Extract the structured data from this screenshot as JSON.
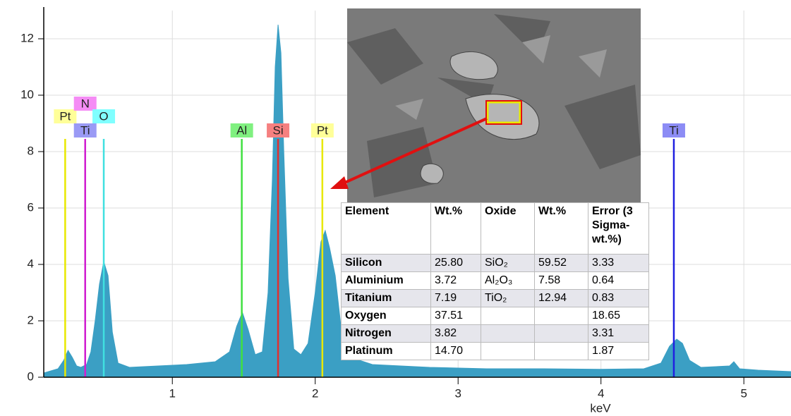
{
  "chart_data": {
    "type": "area",
    "xlabel": "keV",
    "color": "#3b9fc4",
    "x": [
      0.1,
      0.2,
      0.24,
      0.27,
      0.3,
      0.33,
      0.36,
      0.4,
      0.43,
      0.46,
      0.49,
      0.52,
      0.55,
      0.58,
      0.62,
      0.7,
      0.9,
      1.1,
      1.3,
      1.4,
      1.45,
      1.49,
      1.53,
      1.58,
      1.63,
      1.67,
      1.7,
      1.72,
      1.74,
      1.76,
      1.78,
      1.81,
      1.85,
      1.9,
      1.95,
      2.0,
      2.04,
      2.07,
      2.1,
      2.14,
      2.18,
      2.25,
      2.4,
      2.8,
      3.2,
      3.6,
      4.0,
      4.3,
      4.42,
      4.48,
      4.53,
      4.57,
      4.62,
      4.7,
      4.9,
      4.93,
      4.97,
      5.1,
      5.33
    ],
    "values": [
      0.15,
      0.3,
      0.6,
      0.95,
      0.7,
      0.4,
      0.35,
      0.45,
      0.9,
      2.0,
      3.3,
      4.1,
      3.6,
      1.6,
      0.5,
      0.35,
      0.4,
      0.45,
      0.55,
      0.9,
      1.8,
      2.3,
      1.7,
      0.8,
      0.9,
      3.0,
      7.0,
      11.0,
      12.5,
      11.5,
      8.0,
      3.5,
      1.0,
      0.8,
      1.2,
      3.0,
      4.8,
      5.2,
      4.6,
      3.6,
      1.8,
      0.7,
      0.45,
      0.35,
      0.3,
      0.3,
      0.28,
      0.3,
      0.5,
      1.1,
      1.35,
      1.2,
      0.6,
      0.35,
      0.4,
      0.55,
      0.3,
      0.25,
      0.2
    ],
    "xlim": [
      0.1,
      5.33
    ],
    "ylim": [
      0,
      13
    ],
    "xticks": [
      1,
      2,
      3,
      4,
      5
    ],
    "yticks": [
      0,
      2,
      4,
      6,
      8,
      10,
      12
    ],
    "grid": true,
    "markers": [
      {
        "label": "Pt",
        "x": 0.25,
        "color": "#e8e800",
        "label_color": "#ffff99"
      },
      {
        "label": "N",
        "x": 0.39,
        "color": "#e020e0",
        "label_color": "#f58cf5"
      },
      {
        "label": "Ti",
        "x": 0.39,
        "color": "#d020d0",
        "label_color": "#9a9af5"
      },
      {
        "label": "O",
        "x": 0.52,
        "color": "#40e0e0",
        "label_color": "#80ffff"
      },
      {
        "label": "Al",
        "x": 1.486,
        "color": "#40e040",
        "label_color": "#80f080"
      },
      {
        "label": "Si",
        "x": 1.74,
        "color": "#e03030",
        "label_color": "#f58080"
      },
      {
        "label": "Pt",
        "x": 2.05,
        "color": "#e8e800",
        "label_color": "#ffff99"
      },
      {
        "label": "Ti",
        "x": 4.51,
        "color": "#2020e0",
        "label_color": "#8c8cf5"
      }
    ]
  },
  "table": {
    "columns": [
      "Element",
      "Wt.%",
      "Oxide",
      "Wt.%",
      "Error (3 Sigma-wt.%)"
    ],
    "rows": [
      [
        "Silicon",
        "25.80",
        "SiO₂",
        "59.52",
        "3.33"
      ],
      [
        "Aluminium",
        "3.72",
        "Al₂O₃",
        "7.58",
        "0.64"
      ],
      [
        "Titanium",
        "7.19",
        "TiO₂",
        "12.94",
        "0.83"
      ],
      [
        "Oxygen",
        "37.51",
        null,
        null,
        "18.65"
      ],
      [
        "Nitrogen",
        "3.82",
        null,
        null,
        "3.31"
      ],
      [
        "Platinum",
        "14.70",
        null,
        null,
        "1.87"
      ]
    ]
  }
}
